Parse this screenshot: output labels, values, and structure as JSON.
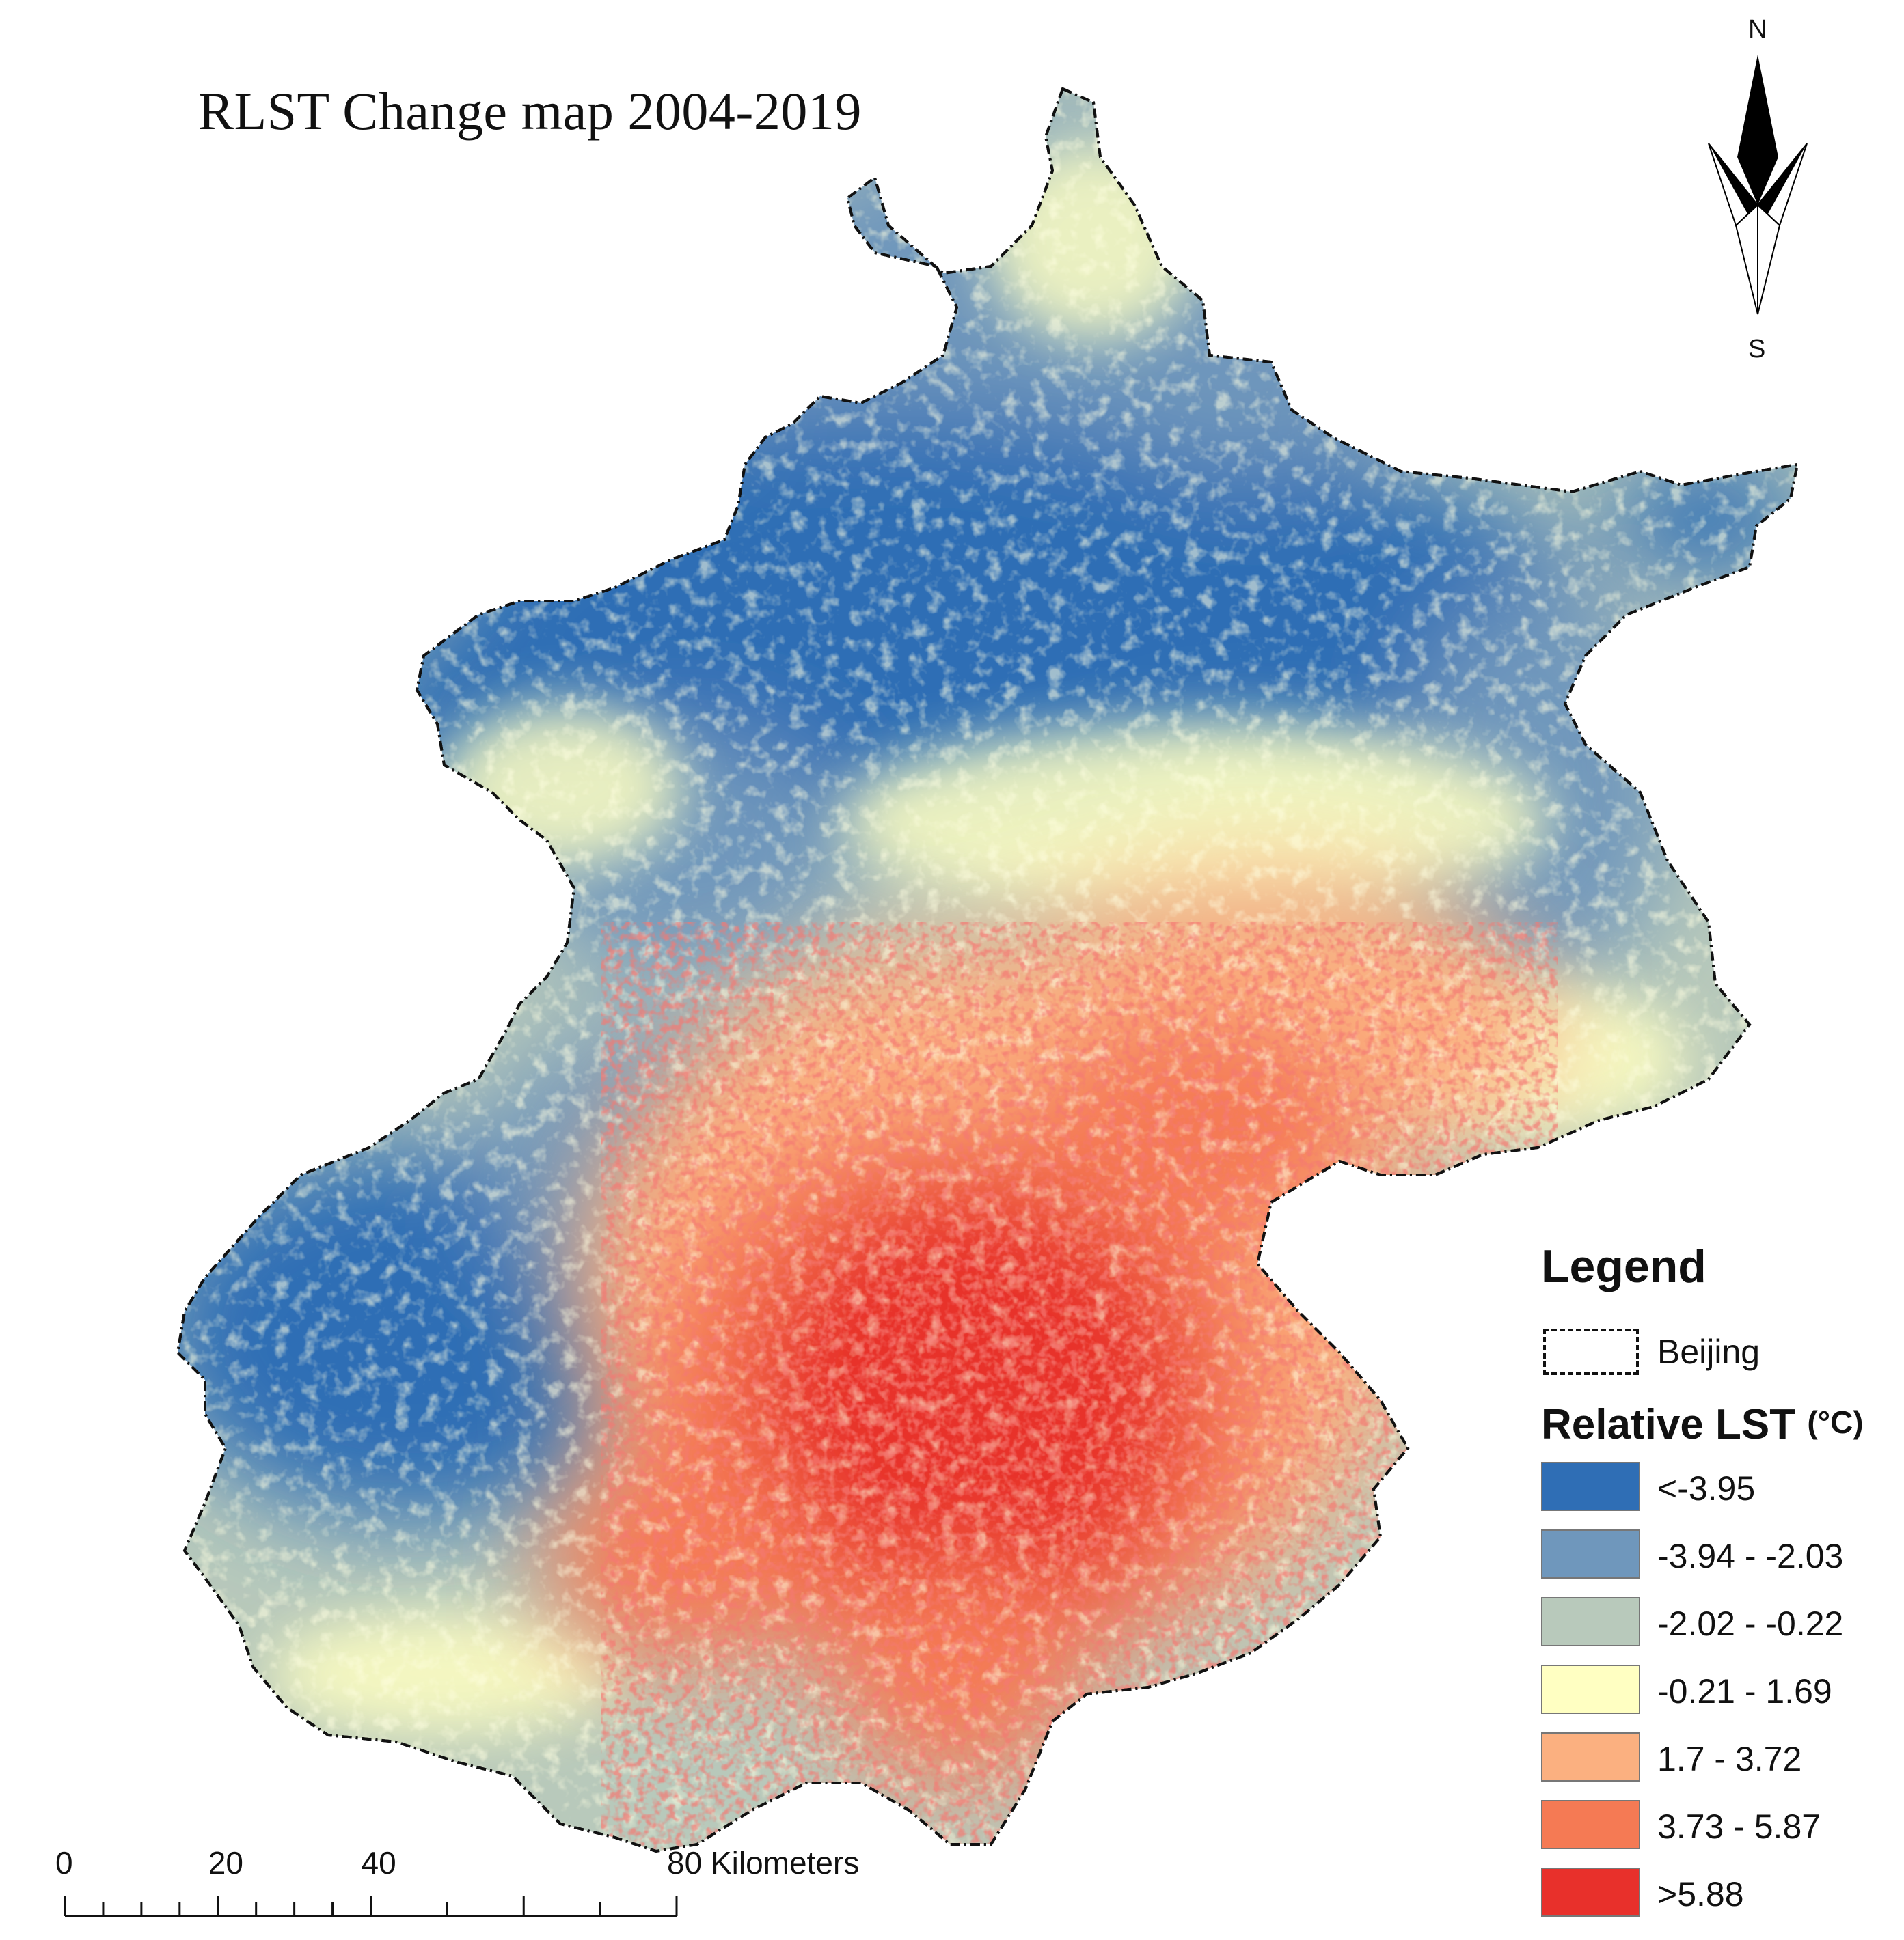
{
  "map": {
    "title": "RLST Change map 2004-2019",
    "region": "Beijing"
  },
  "colors": {
    "class1": "#2f6eb5",
    "class2": "#6f97bc",
    "class3": "#b8c9bb",
    "class4": "#ffffc2",
    "class5": "#fbb080",
    "class6": "#f57a54",
    "class7": "#e8302b"
  },
  "legend": {
    "title": "Legend",
    "boundary_label": "Beijing",
    "lst_title": "Relative LST",
    "lst_unit": "(°C)",
    "classes": [
      {
        "label": "<-3.95",
        "color": "#2f6eb5"
      },
      {
        "label": "-3.94 - -2.03",
        "color": "#6f97bc"
      },
      {
        "label": "-2.02 - -0.22",
        "color": "#b8c9bb"
      },
      {
        "label": "-0.21 - 1.69",
        "color": "#ffffc2"
      },
      {
        "label": "1.7 - 3.72",
        "color": "#fbb080"
      },
      {
        "label": "3.73 - 5.87",
        "color": "#f57a54"
      },
      {
        "label": ">5.88",
        "color": "#e8302b"
      }
    ]
  },
  "north_arrow": {
    "north_label": "N",
    "south_label": "S"
  },
  "scale_bar": {
    "tick_labels": [
      "0",
      "20",
      "40",
      "80 Kilometers"
    ],
    "max_km": 80
  }
}
